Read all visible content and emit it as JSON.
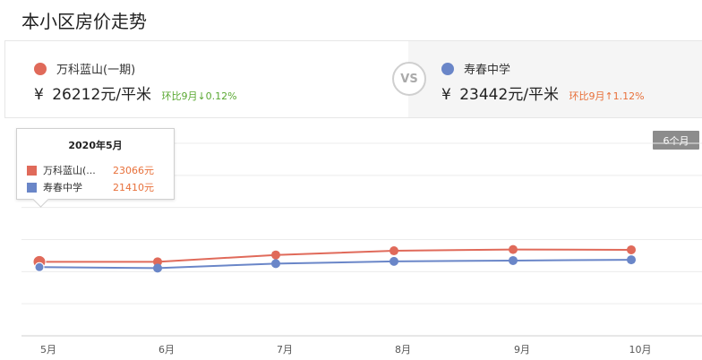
{
  "page": {
    "title": "本小区房价走势"
  },
  "compare": {
    "vs_label": "VS",
    "left": {
      "name": "万科蓝山(一期)",
      "currency": "¥",
      "price": "26212元/平米",
      "change": "环比9月↓0.12%",
      "color": "#e06a5a",
      "change_color": "#5aa832"
    },
    "right": {
      "name": "寿春中学",
      "currency": "¥",
      "price": "23442元/平米",
      "change": "环比9月↑1.12%",
      "color": "#6a86c8",
      "change_color": "#e8703a"
    }
  },
  "range_button": {
    "label": "6个月"
  },
  "tooltip": {
    "title": "2020年5月",
    "rows": [
      {
        "label": "万科蓝山(...",
        "value": "23066元",
        "color": "#e06a5a"
      },
      {
        "label": "寿春中学",
        "value": "21410元",
        "color": "#6a86c8"
      }
    ]
  },
  "chart_data": {
    "type": "line",
    "title": "本小区房价走势",
    "categories": [
      "5月",
      "6月",
      "7月",
      "8月",
      "9月",
      "10月"
    ],
    "series": [
      {
        "name": "万科蓝山(一期)",
        "color": "#e06a5a",
        "values": [
          23066,
          23066,
          25200,
          26500,
          26900,
          26800
        ]
      },
      {
        "name": "寿春中学",
        "color": "#6a86c8",
        "values": [
          21410,
          21100,
          22500,
          23200,
          23450,
          23700
        ]
      }
    ],
    "ylim": [
      0,
      60000
    ],
    "grid": true,
    "legend": "top"
  }
}
